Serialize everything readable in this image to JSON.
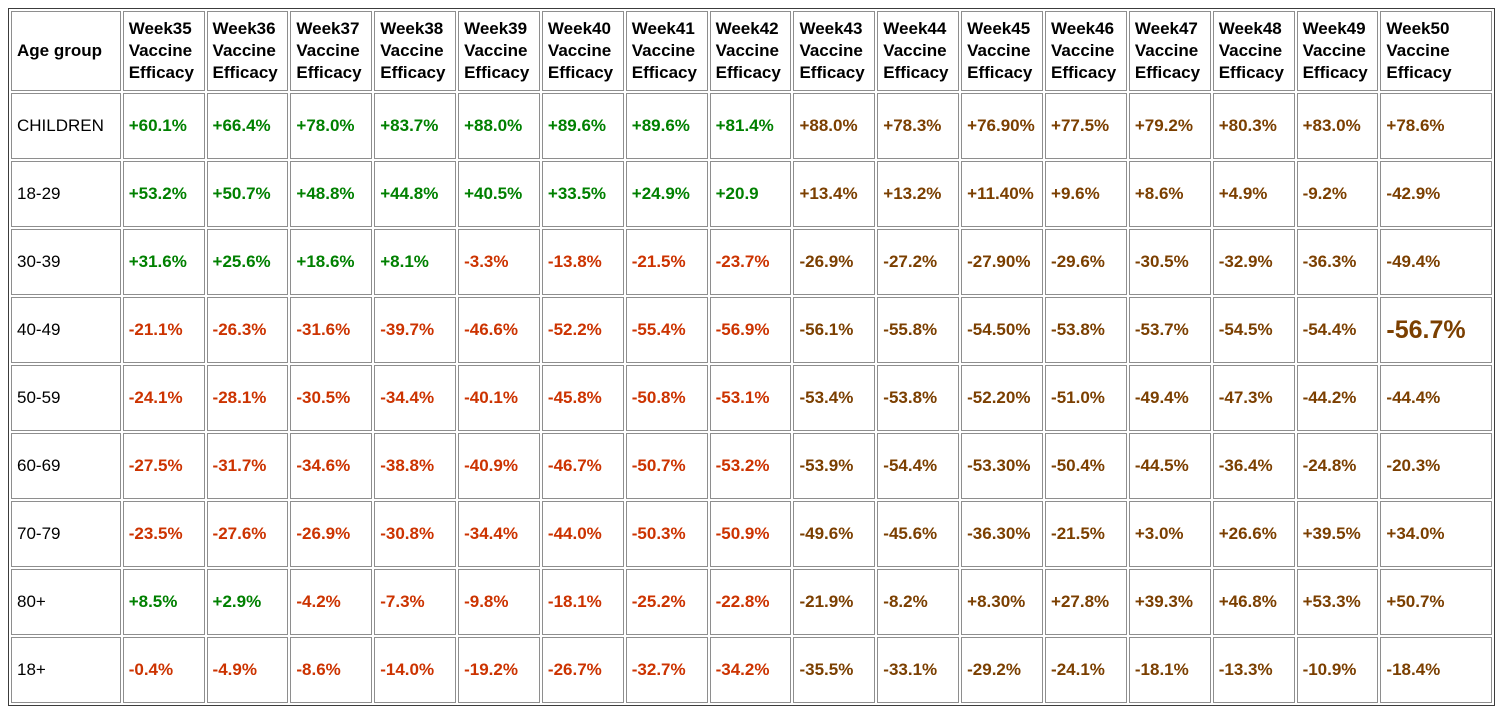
{
  "palette": {
    "positive_color": "#008000",
    "negative_color": "#CC3300",
    "late_week_color": "#7B3F00",
    "cell_border_color": "#8e8e8e",
    "outer_border_color": "#3c3c3c",
    "background_color": "#ffffff",
    "header_text_color": "#000000"
  },
  "table": {
    "corner_header": "Age group",
    "week_headers": [
      "Week35 Vaccine Efficacy",
      "Week36 Vaccine Efficacy",
      "Week37 Vaccine Efficacy",
      "Week38 Vaccine Efficacy",
      "Week39 Vaccine Efficacy",
      "Week40 Vaccine Efficacy",
      "Week41 Vaccine Efficacy",
      "Week42 Vaccine Efficacy",
      "Week43 Vaccine Efficacy",
      "Week44 Vaccine Efficacy",
      "Week45 Vaccine Efficacy",
      "Week46 Vaccine Efficacy",
      "Week47 Vaccine Efficacy",
      "Week48 Vaccine Efficacy",
      "Week49 Vaccine Efficacy",
      "Week50 Vaccine Efficacy"
    ],
    "rows": [
      {
        "age_group": "CHILDREN",
        "values": [
          "+60.1%",
          "+66.4%",
          "+78.0%",
          "+83.7%",
          "+88.0%",
          "+89.6%",
          "+89.6%",
          "+81.4%",
          "+88.0%",
          "+78.3%",
          "+76.90%",
          "+77.5%",
          "+79.2%",
          "+80.3%",
          "+83.0%",
          "+78.6%"
        ]
      },
      {
        "age_group": "18-29",
        "values": [
          "+53.2%",
          "+50.7%",
          "+48.8%",
          "+44.8%",
          "+40.5%",
          "+33.5%",
          "+24.9%",
          "+20.9",
          "+13.4%",
          "+13.2%",
          "+11.40%",
          "+9.6%",
          "+8.6%",
          "+4.9%",
          "-9.2%",
          "-42.9%"
        ]
      },
      {
        "age_group": "30-39",
        "values": [
          "+31.6%",
          "+25.6%",
          "+18.6%",
          "+8.1%",
          "-3.3%",
          "-13.8%",
          "-21.5%",
          "-23.7%",
          "-26.9%",
          "-27.2%",
          "-27.90%",
          "-29.6%",
          "-30.5%",
          "-32.9%",
          "-36.3%",
          "-49.4%"
        ]
      },
      {
        "age_group": "40-49",
        "values": [
          "-21.1%",
          "-26.3%",
          "-31.6%",
          "-39.7%",
          "-46.6%",
          "-52.2%",
          "-55.4%",
          "-56.9%",
          "-56.1%",
          "-55.8%",
          "-54.50%",
          "-53.8%",
          "-53.7%",
          "-54.5%",
          "-54.4%",
          "-56.7%"
        ]
      },
      {
        "age_group": "50-59",
        "values": [
          "-24.1%",
          "-28.1%",
          "-30.5%",
          "-34.4%",
          "-40.1%",
          "-45.8%",
          "-50.8%",
          "-53.1%",
          "-53.4%",
          "-53.8%",
          "-52.20%",
          "-51.0%",
          "-49.4%",
          "-47.3%",
          "-44.2%",
          "-44.4%"
        ]
      },
      {
        "age_group": "60-69",
        "values": [
          "-27.5%",
          "-31.7%",
          "-34.6%",
          "-38.8%",
          "-40.9%",
          "-46.7%",
          "-50.7%",
          "-53.2%",
          "-53.9%",
          "-54.4%",
          "-53.30%",
          "-50.4%",
          "-44.5%",
          "-36.4%",
          "-24.8%",
          "-20.3%"
        ]
      },
      {
        "age_group": "70-79",
        "values": [
          "-23.5%",
          "-27.6%",
          "-26.9%",
          "-30.8%",
          "-34.4%",
          "-44.0%",
          "-50.3%",
          "-50.9%",
          "-49.6%",
          "-45.6%",
          "-36.30%",
          "-21.5%",
          "+3.0%",
          "+26.6%",
          "+39.5%",
          "+34.0%"
        ]
      },
      {
        "age_group": "80+",
        "values": [
          "+8.5%",
          "+2.9%",
          "-4.2%",
          "-7.3%",
          "-9.8%",
          "-18.1%",
          "-25.2%",
          "-22.8%",
          "-21.9%",
          "-8.2%",
          "+8.30%",
          "+27.8%",
          "+39.3%",
          "+46.8%",
          "+53.3%",
          "+50.7%"
        ]
      },
      {
        "age_group": "18+",
        "values": [
          "-0.4%",
          "-4.9%",
          "-8.6%",
          "-14.0%",
          "-19.2%",
          "-26.7%",
          "-32.7%",
          "-34.2%",
          "-35.5%",
          "-33.1%",
          "-29.2%",
          "-24.1%",
          "-18.1%",
          "-13.3%",
          "-10.9%",
          "-18.4%"
        ]
      }
    ],
    "style_rules": {
      "early_week_count": 8,
      "highlight": {
        "row_label": "40-49",
        "week": "Week50",
        "week_index": 15
      }
    }
  },
  "chart_data": {
    "type": "table",
    "title": "Vaccine Efficacy by age group, Week35-Week50",
    "unit": "%",
    "categories": [
      "Week35",
      "Week36",
      "Week37",
      "Week38",
      "Week39",
      "Week40",
      "Week41",
      "Week42",
      "Week43",
      "Week44",
      "Week45",
      "Week46",
      "Week47",
      "Week48",
      "Week49",
      "Week50"
    ],
    "series": [
      {
        "name": "CHILDREN",
        "values": [
          60.1,
          66.4,
          78.0,
          83.7,
          88.0,
          89.6,
          89.6,
          81.4,
          88.0,
          78.3,
          76.9,
          77.5,
          79.2,
          80.3,
          83.0,
          78.6
        ]
      },
      {
        "name": "18-29",
        "values": [
          53.2,
          50.7,
          48.8,
          44.8,
          40.5,
          33.5,
          24.9,
          20.9,
          13.4,
          13.2,
          11.4,
          9.6,
          8.6,
          4.9,
          -9.2,
          -42.9
        ]
      },
      {
        "name": "30-39",
        "values": [
          31.6,
          25.6,
          18.6,
          8.1,
          -3.3,
          -13.8,
          -21.5,
          -23.7,
          -26.9,
          -27.2,
          -27.9,
          -29.6,
          -30.5,
          -32.9,
          -36.3,
          -49.4
        ]
      },
      {
        "name": "40-49",
        "values": [
          -21.1,
          -26.3,
          -31.6,
          -39.7,
          -46.6,
          -52.2,
          -55.4,
          -56.9,
          -56.1,
          -55.8,
          -54.5,
          -53.8,
          -53.7,
          -54.5,
          -54.4,
          -56.7
        ]
      },
      {
        "name": "50-59",
        "values": [
          -24.1,
          -28.1,
          -30.5,
          -34.4,
          -40.1,
          -45.8,
          -50.8,
          -53.1,
          -53.4,
          -53.8,
          -52.2,
          -51.0,
          -49.4,
          -47.3,
          -44.2,
          -44.4
        ]
      },
      {
        "name": "60-69",
        "values": [
          -27.5,
          -31.7,
          -34.6,
          -38.8,
          -40.9,
          -46.7,
          -50.7,
          -53.2,
          -53.9,
          -54.4,
          -53.3,
          -50.4,
          -44.5,
          -36.4,
          -24.8,
          -20.3
        ]
      },
      {
        "name": "70-79",
        "values": [
          -23.5,
          -27.6,
          -26.9,
          -30.8,
          -34.4,
          -44.0,
          -50.3,
          -50.9,
          -49.6,
          -45.6,
          -36.3,
          -21.5,
          3.0,
          26.6,
          39.5,
          34.0
        ]
      },
      {
        "name": "80+",
        "values": [
          8.5,
          2.9,
          -4.2,
          -7.3,
          -9.8,
          -18.1,
          -25.2,
          -22.8,
          -21.9,
          -8.2,
          8.3,
          27.8,
          39.3,
          46.8,
          53.3,
          50.7
        ]
      },
      {
        "name": "18+",
        "values": [
          -0.4,
          -4.9,
          -8.6,
          -14.0,
          -19.2,
          -26.7,
          -32.7,
          -34.2,
          -35.5,
          -33.1,
          -29.2,
          -24.1,
          -18.1,
          -13.3,
          -10.9,
          -18.4
        ]
      }
    ],
    "legend_position": "none",
    "grid": true
  }
}
